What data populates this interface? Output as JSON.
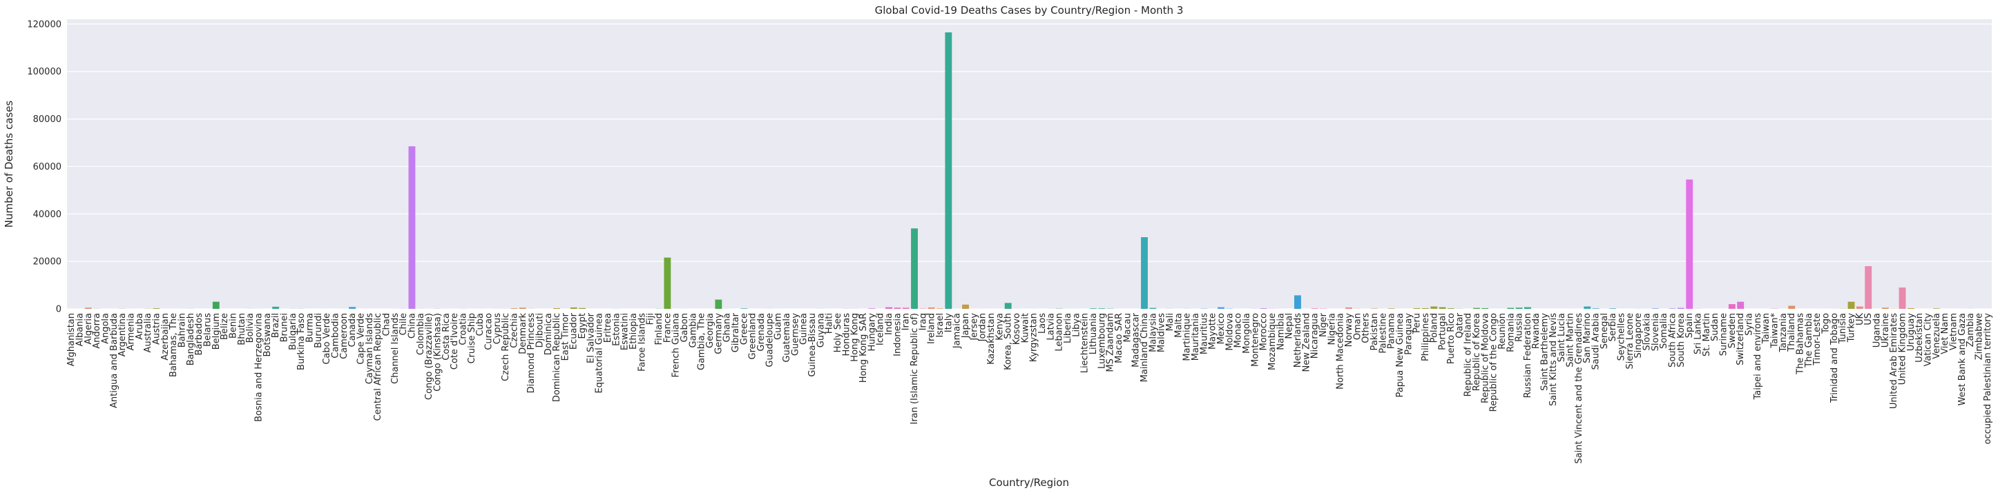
{
  "chart_data": {
    "type": "bar",
    "title": "Global Covid-19 Deaths Cases by Country/Region - Month 3",
    "xlabel": "Country/Region",
    "ylabel": "Number of Deaths cases",
    "ylim": [
      0,
      122000
    ],
    "yticks": [
      0,
      20000,
      40000,
      60000,
      80000,
      100000,
      120000
    ],
    "ytick_labels": [
      "0",
      "20000",
      "40000",
      "60000",
      "80000",
      "100000",
      "120000"
    ],
    "grid": true,
    "background": "#eaeaf2",
    "categories": [
      "Afghanistan",
      "Albania",
      "Algeria",
      "Andorra",
      "Angola",
      "Antigua and Barbuda",
      "Argentina",
      "Armenia",
      "Aruba",
      "Australia",
      "Austria",
      "Azerbaijan",
      "Bahamas, The",
      "Bahrain",
      "Bangladesh",
      "Barbados",
      "Belarus",
      "Belgium",
      "Belize",
      "Benin",
      "Bhutan",
      "Bolivia",
      "Bosnia and Herzegovina",
      "Botswana",
      "Brazil",
      "Brunei",
      "Bulgaria",
      "Burkina Faso",
      "Burma",
      "Burundi",
      "Cabo Verde",
      "Cambodia",
      "Cameroon",
      "Canada",
      "Cape Verde",
      "Cayman Islands",
      "Central African Republic",
      "Chad",
      "Channel Islands",
      "Chile",
      "China",
      "Colombia",
      "Congo (Brazzaville)",
      "Congo (Kinshasa)",
      "Costa Rica",
      "Cote d'Ivoire",
      "Croatia",
      "Cruise Ship",
      "Cuba",
      "Curacao",
      "Cyprus",
      "Czech Republic",
      "Czechia",
      "Denmark",
      "Diamond Princess",
      "Djibouti",
      "Dominica",
      "Dominican Republic",
      "East Timor",
      "Ecuador",
      "Egypt",
      "El Salvador",
      "Equatorial Guinea",
      "Eritrea",
      "Estonia",
      "Eswatini",
      "Ethiopia",
      "Faroe Islands",
      "Fiji",
      "Finland",
      "France",
      "French Guiana",
      "Gabon",
      "Gambia",
      "Gambia, The",
      "Georgia",
      "Germany",
      "Ghana",
      "Gibraltar",
      "Greece",
      "Greenland",
      "Grenada",
      "Guadeloupe",
      "Guam",
      "Guatemala",
      "Guernsey",
      "Guinea",
      "Guinea-Bissau",
      "Guyana",
      "Haiti",
      "Holy See",
      "Honduras",
      "Hong Kong",
      "Hong Kong SAR",
      "Hungary",
      "Iceland",
      "India",
      "Indonesia",
      "Iran",
      "Iran (Islamic Republic of)",
      "Iraq",
      "Ireland",
      "Israel",
      "Italy",
      "Jamaica",
      "Japan",
      "Jersey",
      "Jordan",
      "Kazakhstan",
      "Kenya",
      "Korea, South",
      "Kosovo",
      "Kuwait",
      "Kyrgyzstan",
      "Laos",
      "Latvia",
      "Lebanon",
      "Liberia",
      "Libya",
      "Liechtenstein",
      "Lithuania",
      "Luxembourg",
      "MS Zaandam",
      "Macao SAR",
      "Macau",
      "Madagascar",
      "Mainland China",
      "Malaysia",
      "Maldives",
      "Mali",
      "Malta",
      "Martinique",
      "Mauritania",
      "Mauritius",
      "Mayotte",
      "Mexico",
      "Moldova",
      "Monaco",
      "Mongolia",
      "Montenegro",
      "Morocco",
      "Mozambique",
      "Namibia",
      "Nepal",
      "Netherlands",
      "New Zealand",
      "Nicaragua",
      "Niger",
      "Nigeria",
      "North Macedonia",
      "Norway",
      "Oman",
      "Others",
      "Pakistan",
      "Palestine",
      "Panama",
      "Papua New Guinea",
      "Paraguay",
      "Peru",
      "Philippines",
      "Poland",
      "Portugal",
      "Puerto Rico",
      "Qatar",
      "Republic of Ireland",
      "Republic of Korea",
      "Republic of Moldova",
      "Republic of the Congo",
      "Reunion",
      "Romania",
      "Russia",
      "Russian Federation",
      "Rwanda",
      "Saint Barthelemy",
      "Saint Kitts and Nevis",
      "Saint Lucia",
      "Saint Martin",
      "Saint Vincent and the Grenadines",
      "San Marino",
      "Saudi Arabia",
      "Senegal",
      "Serbia",
      "Seychelles",
      "Sierra Leone",
      "Singapore",
      "Slovakia",
      "Slovenia",
      "Somalia",
      "South Africa",
      "South Korea",
      "Spain",
      "Sri Lanka",
      "St. Martin",
      "Sudan",
      "Suriname",
      "Sweden",
      "Switzerland",
      "Syria",
      "Taipei and environs",
      "Taiwan",
      "Taiwan*",
      "Tanzania",
      "Thailand",
      "The Bahamas",
      "The Gambia",
      "Timor-Leste",
      "Togo",
      "Trinidad and Tobago",
      "Tunisia",
      "Turkey",
      "UK",
      "US",
      "Uganda",
      "Ukraine",
      "United Arab Emirates",
      "United Kingdom",
      "Uruguay",
      "Uzbekistan",
      "Vatican City",
      "Venezuela",
      "Viet Nam",
      "Vietnam",
      "West Bank and Gaza",
      "Zambia",
      "Zimbabwe",
      "occupied Palestinian territory"
    ],
    "values": [
      10,
      8,
      500,
      60,
      2,
      3,
      60,
      10,
      1,
      60,
      250,
      5,
      3,
      20,
      40,
      0,
      10,
      3000,
      2,
      1,
      0,
      30,
      20,
      1,
      900,
      2,
      40,
      50,
      1,
      0,
      10,
      0,
      20,
      800,
      3,
      4,
      0,
      0,
      20,
      40,
      68500,
      40,
      20,
      60,
      10,
      10,
      40,
      0,
      20,
      5,
      30,
      30,
      250,
      500,
      50,
      0,
      0,
      300,
      0,
      600,
      350,
      10,
      0,
      0,
      30,
      0,
      0,
      0,
      0,
      60,
      21600,
      0,
      10,
      0,
      2,
      0,
      3900,
      20,
      0,
      200,
      0,
      0,
      30,
      10,
      5,
      3,
      0,
      0,
      30,
      3,
      0,
      50,
      40,
      10,
      200,
      10,
      700,
      500,
      450,
      33900,
      150,
      600,
      200,
      116500,
      10,
      1800,
      10,
      20,
      5,
      10,
      2500,
      30,
      10,
      20,
      0,
      30,
      100,
      20,
      10,
      3,
      200,
      200,
      100,
      0,
      0,
      0,
      30200,
      400,
      2,
      40,
      10,
      40,
      2,
      100,
      10,
      700,
      100,
      10,
      0,
      50,
      250,
      50,
      20,
      0,
      5700,
      5,
      200,
      100,
      0,
      2,
      600,
      60,
      10,
      150,
      10,
      200,
      10,
      0,
      300,
      300,
      1000,
      700,
      250,
      50,
      3,
      400,
      300,
      0,
      10,
      400,
      500,
      700,
      0,
      0,
      0,
      0,
      5,
      2,
      1000,
      200,
      10,
      200,
      0,
      0,
      30,
      20,
      200,
      0,
      200,
      400,
      54500,
      50,
      0,
      5,
      1,
      2000,
      3000,
      5,
      0,
      5,
      100,
      10,
      1300,
      0,
      5,
      5,
      10,
      20,
      60,
      3000,
      1000,
      18000,
      0,
      500,
      50,
      9000,
      300,
      5,
      0,
      200,
      0,
      0,
      3,
      30,
      1,
      0
    ],
    "colors": [
      "#e98f80",
      "#e99175",
      "#df9269",
      "#da955f",
      "#d29a50",
      "#c39b4b",
      "#c29e43",
      "#b89e41",
      "#aba13c",
      "#a4a23a",
      "#9aa239",
      "#8ea33b",
      "#82a63c",
      "#77a73f",
      "#65a744",
      "#59a84b",
      "#4ca851",
      "#3ea659",
      "#32a663",
      "#32a86d",
      "#34a877",
      "#34a97f",
      "#36a987",
      "#37a88f",
      "#38a996",
      "#39a99d",
      "#39a9a3",
      "#39a9aa",
      "#3aa9b1",
      "#3ba9b9",
      "#3da8c1",
      "#3ea7ca",
      "#40a5d4",
      "#43a2e0",
      "#4a9fed",
      "#5a9af2",
      "#7797f4",
      "#8c92f2",
      "#a28ef2",
      "#b186f2",
      "#c27ef0",
      "#d07bed",
      "#dd70e8",
      "#e56ee1",
      "#e86ccf",
      "#e96cc4",
      "#ea6eb9",
      "#ea72ad",
      "#ea75a1",
      "#eb7a95",
      "#e98f80",
      "#e99175",
      "#df9269",
      "#da955f",
      "#d29a50",
      "#c39b4b",
      "#c29e43",
      "#b89e41",
      "#aba13c",
      "#a4a23a",
      "#9aa239",
      "#8ea33b",
      "#82a63c",
      "#77a73f",
      "#65a744",
      "#59a84b",
      "#4ca851",
      "#3ea659",
      "#32a663",
      "#32a86d",
      "#6ca738",
      "#34a877",
      "#34a97f",
      "#36a987",
      "#37a88f",
      "#38a996",
      "#4ca851",
      "#39a99d",
      "#39a9a3",
      "#39a9aa",
      "#3aa9b1",
      "#3ba9b9",
      "#3da8c1",
      "#3ea7ca",
      "#40a5d4",
      "#43a2e0",
      "#4a9fed",
      "#5a9af2",
      "#7797f4",
      "#8c92f2",
      "#a28ef2",
      "#b186f2",
      "#c27ef0",
      "#d07bed",
      "#dd70e8",
      "#e56ee1",
      "#e86ccf",
      "#e96cc4",
      "#ea6eb9",
      "#37aa83",
      "#e98f80",
      "#e99175",
      "#df9269",
      "#36ab94",
      "#d29a50",
      "#c39b4b",
      "#c29e43",
      "#b89e41",
      "#aba13c",
      "#a4a23a",
      "#36a98f",
      "#8ea33b",
      "#82a63c",
      "#77a73f",
      "#65a744",
      "#59a84b",
      "#4ca851",
      "#3ea659",
      "#32a663",
      "#32a86d",
      "#34a877",
      "#34a97f",
      "#36a987",
      "#37a88f",
      "#38a996",
      "#39a99d",
      "#3aa9b6",
      "#39a9aa",
      "#3aa9b1",
      "#3ba9b9",
      "#3da8c1",
      "#3ea7ca",
      "#40a5d4",
      "#43a2e0",
      "#4a9fed",
      "#5a9af2",
      "#7797f4",
      "#8c92f2",
      "#a28ef2",
      "#b186f2",
      "#c27ef0",
      "#d07bed",
      "#dd70e8",
      "#e56ee1",
      "#3d9fd8",
      "#e96cc4",
      "#ea6eb9",
      "#ea72ad",
      "#ea75a1",
      "#eb7a95",
      "#e98f80",
      "#e99175",
      "#df9269",
      "#da955f",
      "#d29a50",
      "#c39b4b",
      "#c29e43",
      "#b89e41",
      "#aba13c",
      "#a4a23a",
      "#9aa239",
      "#8ea33b",
      "#82a63c",
      "#77a73f",
      "#65a744",
      "#59a84b",
      "#4ca851",
      "#3ea659",
      "#32a663",
      "#32a86d",
      "#34a877",
      "#34a97f",
      "#36a987",
      "#37a88f",
      "#38a996",
      "#39a99d",
      "#39a9a3",
      "#39a9aa",
      "#3aa9b1",
      "#3ba9b9",
      "#3da8c1",
      "#3ea7ca",
      "#40a5d4",
      "#43a2e0",
      "#4a9fed",
      "#5a9af2",
      "#7797f4",
      "#8c92f2",
      "#a28ef2",
      "#b186f2",
      "#e271e8",
      "#d07bed",
      "#dd70e8",
      "#e56ee1",
      "#e86ccf",
      "#e96cc4",
      "#df71d6",
      "#ea72ad",
      "#ea75a1",
      "#eb7a95",
      "#e98f80",
      "#e99175",
      "#df9269",
      "#da955f",
      "#d29a50",
      "#c39b4b",
      "#c29e43",
      "#b89e41",
      "#aba13c",
      "#a4a23a",
      "#e98f80",
      "#e98aae",
      "#df9269",
      "#da955f",
      "#d29a50",
      "#e88aac",
      "#c29e43",
      "#b89e41",
      "#aba13c",
      "#a4a23a",
      "#9aa239",
      "#8ea33b",
      "#82a63c",
      "#77a73f",
      "#65a744",
      "#59a84b"
    ]
  }
}
